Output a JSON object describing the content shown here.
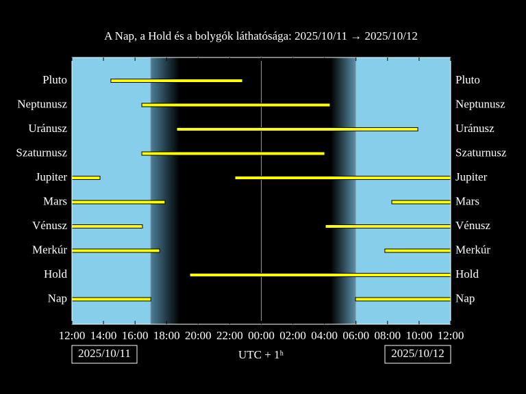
{
  "chart_data": {
    "type": "timeline",
    "title": "A Nap, a Hold és a bolygók láthatósága: 2025/10/11 → 2025/10/12",
    "x_label": "UTC + 1ʰ",
    "date_labels": [
      "2025/10/11",
      "2025/10/12"
    ],
    "xlim": [
      0,
      24
    ],
    "xticks": [
      {
        "value": 0,
        "label": "12:00"
      },
      {
        "value": 2,
        "label": "14:00"
      },
      {
        "value": 4,
        "label": "16:00"
      },
      {
        "value": 6,
        "label": "18:00"
      },
      {
        "value": 8,
        "label": "20:00"
      },
      {
        "value": 10,
        "label": "22:00"
      },
      {
        "value": 12,
        "label": "00:00"
      },
      {
        "value": 14,
        "label": "02:00"
      },
      {
        "value": 16,
        "label": "04:00"
      },
      {
        "value": 18,
        "label": "06:00"
      },
      {
        "value": 20,
        "label": "08:00"
      },
      {
        "value": 22,
        "label": "10:00"
      },
      {
        "value": 24,
        "label": "12:00"
      }
    ],
    "bar_color": "#ffff00",
    "day_color": "#87ceeb",
    "night_color": "#000000",
    "twilight": {
      "sunset": 5.0,
      "dusk_end": 6.83,
      "dawn_start": 16.4,
      "sunrise": 17.97
    },
    "midnight": 12,
    "series": [
      {
        "name": "Pluto",
        "segments": [
          [
            2.47,
            10.81
          ]
        ]
      },
      {
        "name": "Neptunusz",
        "segments": [
          [
            4.43,
            16.36
          ]
        ]
      },
      {
        "name": "Uránusz",
        "segments": [
          [
            6.64,
            21.92
          ]
        ]
      },
      {
        "name": "Szaturnusz",
        "segments": [
          [
            4.43,
            16.02
          ]
        ]
      },
      {
        "name": "Jupiter",
        "segments": [
          [
            0,
            1.78
          ],
          [
            10.33,
            24
          ]
        ]
      },
      {
        "name": "Mars",
        "segments": [
          [
            0,
            5.9
          ],
          [
            20.27,
            24
          ]
        ]
      },
      {
        "name": "Vénusz",
        "segments": [
          [
            0,
            4.47
          ],
          [
            16.06,
            24
          ]
        ]
      },
      {
        "name": "Merkúr",
        "segments": [
          [
            0,
            5.56
          ],
          [
            19.83,
            24
          ]
        ]
      },
      {
        "name": "Hold",
        "segments": [
          [
            7.47,
            24
          ]
        ]
      },
      {
        "name": "Nap",
        "segments": [
          [
            0,
            5.0
          ],
          [
            17.97,
            24
          ]
        ]
      }
    ]
  }
}
